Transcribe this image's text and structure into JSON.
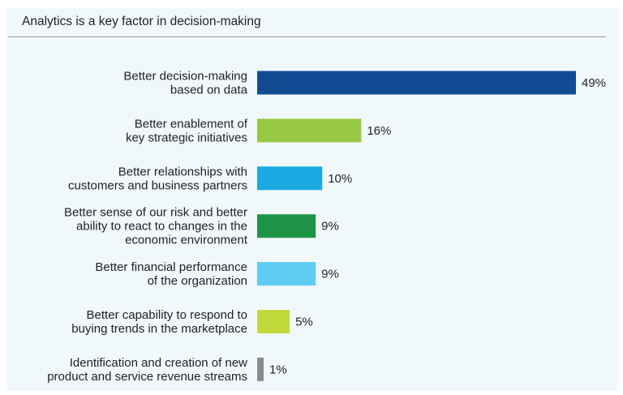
{
  "chart_data": {
    "type": "bar",
    "orientation": "horizontal",
    "title": "Analytics is a key factor in decision-making",
    "categories": [
      [
        "Better decision-making",
        "based on data"
      ],
      [
        "Better enablement of",
        "key strategic initiatives"
      ],
      [
        "Better relationships with",
        "customers and business partners"
      ],
      [
        "Better sense of our risk and better",
        "ability to react to changes in the",
        "economic environment"
      ],
      [
        "Better financial performance",
        "of the organization"
      ],
      [
        "Better capability to respond to",
        "buying trends in the marketplace"
      ],
      [
        "Identification and creation of new",
        "product and service revenue streams"
      ]
    ],
    "values": [
      49,
      16,
      10,
      9,
      9,
      5,
      1
    ],
    "value_labels": [
      "49%",
      "16%",
      "10%",
      "9%",
      "9%",
      "5%",
      "1%"
    ],
    "colors": [
      "#124b93",
      "#97c844",
      "#1aa9e1",
      "#1f9447",
      "#5fcdf2",
      "#c1d83b",
      "#8a8a8c"
    ],
    "xlim": [
      0,
      49
    ],
    "grid": false,
    "legend": "none"
  }
}
